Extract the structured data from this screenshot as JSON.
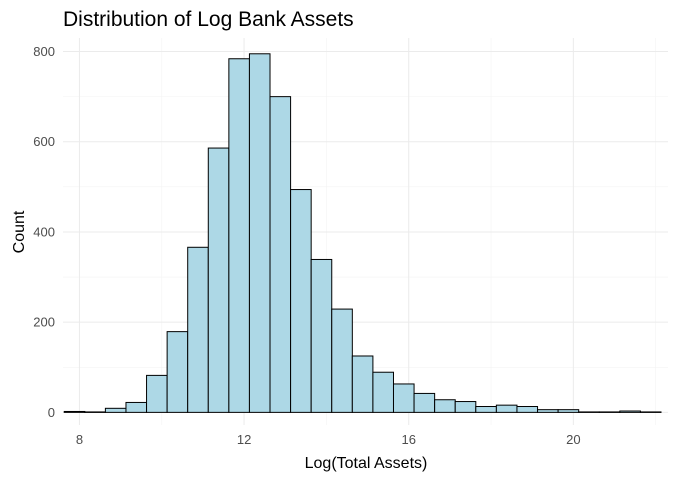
{
  "chart_data": {
    "type": "bar",
    "title": "Distribution of Log Bank Assets",
    "xlabel": "Log(Total Assets)",
    "ylabel": "Count",
    "bin_width": 0.5,
    "bin_centers": [
      7.88,
      8.38,
      8.88,
      9.38,
      9.88,
      10.38,
      10.88,
      11.38,
      11.88,
      12.38,
      12.88,
      13.38,
      13.88,
      14.38,
      14.88,
      15.38,
      15.88,
      16.38,
      16.88,
      17.38,
      17.88,
      18.38,
      18.88,
      19.38,
      19.88,
      20.38,
      20.88,
      21.38,
      21.88
    ],
    "values": [
      2,
      1,
      9,
      22,
      82,
      179,
      366,
      586,
      784,
      795,
      700,
      494,
      339,
      229,
      125,
      89,
      63,
      42,
      28,
      24,
      13,
      16,
      13,
      6,
      6,
      1,
      1,
      3,
      1
    ],
    "xlim": [
      7.6,
      22.3
    ],
    "ylim": [
      -28,
      830
    ],
    "xticks": [
      8,
      12,
      16,
      20
    ],
    "yticks": [
      0,
      200,
      400,
      600,
      800
    ],
    "grid": true,
    "bar_fill": "#add8e6",
    "bar_outline": "#000000",
    "grid_color": "#ebebeb"
  }
}
